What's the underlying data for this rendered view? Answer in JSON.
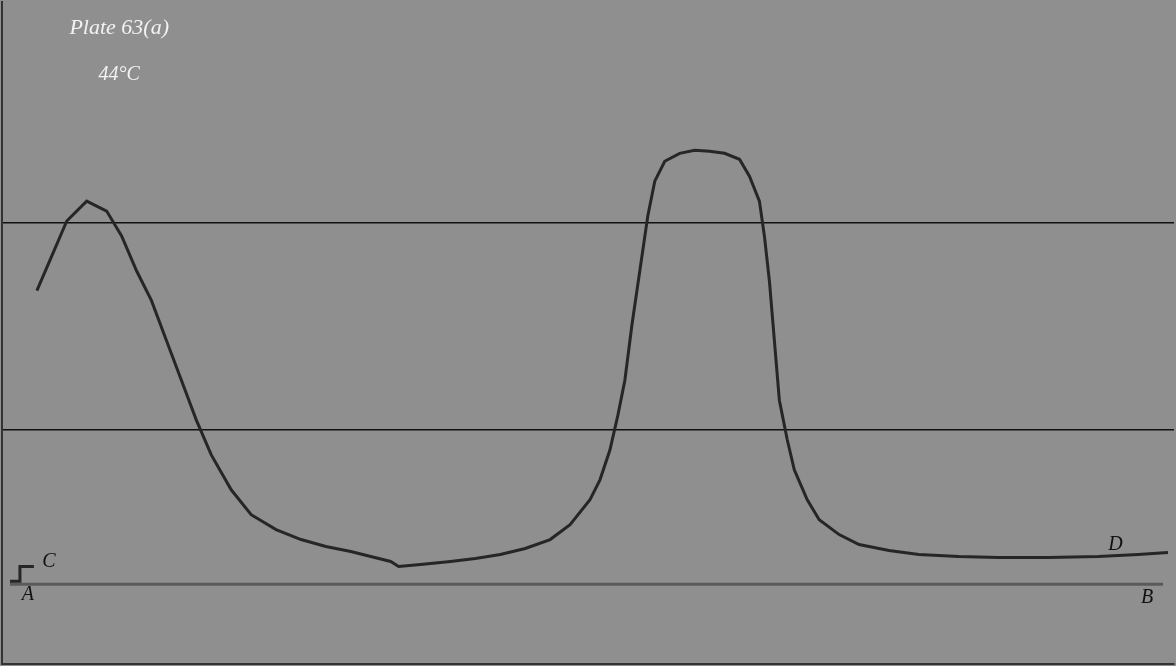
{
  "chart_data": {
    "type": "line",
    "annotations": [
      "Plate 63(a)",
      "44°C",
      "A",
      "B",
      "C",
      "D"
    ],
    "series": [
      {
        "color": "#262626",
        "x": [
          35,
          50,
          65,
          85,
          105,
          120,
          135,
          150,
          165,
          180,
          195,
          210,
          230,
          250,
          275,
          300,
          325,
          350,
          370,
          390,
          398,
          420,
          450,
          475,
          500,
          525,
          550,
          570,
          590,
          600,
          610,
          618,
          625,
          632,
          640,
          648,
          655,
          665,
          680,
          695,
          710,
          725,
          740,
          750,
          760,
          765,
          770,
          775,
          780,
          788,
          795,
          808,
          820,
          840,
          860,
          890,
          920,
          960,
          1000,
          1050,
          1100,
          1140,
          1170
        ],
        "values": [
          295,
          330,
          365,
          385,
          375,
          350,
          315,
          285,
          245,
          205,
          165,
          130,
          95,
          70,
          55,
          45,
          38,
          33,
          28,
          23,
          18,
          20,
          23,
          26,
          30,
          36,
          45,
          60,
          85,
          105,
          135,
          170,
          205,
          260,
          315,
          370,
          405,
          425,
          433,
          436,
          435,
          433,
          427,
          410,
          385,
          350,
          305,
          245,
          185,
          145,
          115,
          85,
          65,
          50,
          40,
          34,
          30,
          28,
          27,
          27,
          28,
          30,
          32
        ]
      },
      {
        "color": "#262626",
        "x": [
          8,
          18,
          18,
          32
        ],
        "values": [
          3,
          3,
          18,
          18
        ]
      },
      {
        "color": "#5a5a5a",
        "x": [
          8,
          1165
        ],
        "values": [
          0,
          0
        ]
      }
    ],
    "xlim": [
      0,
      1176
    ],
    "ylim": [
      -80,
      585
    ],
    "xticks": [],
    "yticks": [
      155,
      363
    ],
    "grid": true,
    "tick_labels": false
  }
}
